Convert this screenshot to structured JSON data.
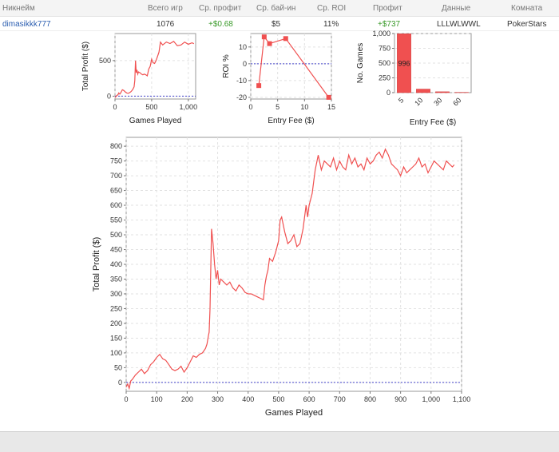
{
  "table": {
    "headers": [
      "Никнейм",
      "Всего игр",
      "Ср. профит",
      "Ср. бай-ин",
      "Ср. ROI",
      "Профит",
      "Данные",
      "Комната"
    ],
    "row": {
      "nickname": "dimasikkk777",
      "total_games": "1076",
      "avg_profit": "+$0.68",
      "avg_buyin": "$5",
      "avg_roi": "11%",
      "profit": "+$737",
      "data": "LLLWLWWL",
      "room": "PokerStars"
    }
  },
  "colors": {
    "series": "#f05050",
    "zero_line": "#4444cc",
    "positive": "#3a9a2a",
    "link": "#2a5db0"
  },
  "chart_data": [
    {
      "id": "small-profit",
      "type": "line",
      "xlabel": "Games Played",
      "ylabel": "Total Profit ($)",
      "xlim": [
        0,
        1100
      ],
      "ylim": [
        -40,
        880
      ],
      "xticks": [
        0,
        500,
        1000
      ],
      "xtick_labels": [
        "0",
        "500",
        "1,000"
      ],
      "yticks": [
        0,
        500
      ],
      "grid": true,
      "x": [
        0,
        10,
        25,
        40,
        50,
        65,
        80,
        100,
        120,
        140,
        160,
        180,
        200,
        220,
        240,
        260,
        270,
        280,
        290,
        300,
        310,
        320,
        340,
        360,
        380,
        400,
        420,
        440,
        450,
        460,
        480,
        500,
        520,
        540,
        560,
        580,
        600,
        620,
        650,
        700,
        750,
        800,
        850,
        900,
        950,
        1000,
        1050,
        1076
      ],
      "y": [
        -20,
        -10,
        10,
        20,
        45,
        30,
        50,
        90,
        80,
        60,
        45,
        40,
        50,
        65,
        90,
        130,
        220,
        500,
        330,
        370,
        310,
        340,
        330,
        310,
        300,
        310,
        300,
        285,
        330,
        380,
        420,
        520,
        470,
        460,
        500,
        560,
        620,
        760,
        720,
        760,
        740,
        770,
        710,
        720,
        760,
        730,
        750,
        737
      ]
    },
    {
      "id": "roi",
      "type": "line",
      "xlabel": "Entry Fee ($)",
      "ylabel": "ROI %",
      "xlim": [
        0,
        15
      ],
      "ylim": [
        -21,
        18
      ],
      "xticks": [
        0,
        5,
        10,
        15
      ],
      "yticks": [
        -20,
        -10,
        0,
        10
      ],
      "grid": true,
      "x": [
        1.5,
        2.5,
        3.5,
        6.5,
        14.5
      ],
      "y": [
        -13,
        16,
        12,
        15,
        -20
      ]
    },
    {
      "id": "games-count",
      "type": "bar",
      "xlabel": "Entry Fee ($)",
      "ylabel": "No. Games",
      "categories": [
        "5",
        "10",
        "30",
        "60"
      ],
      "values": [
        996,
        60,
        15,
        5
      ],
      "data_labels": [
        "996",
        "",
        "",
        ""
      ],
      "ylim": [
        0,
        1000
      ],
      "yticks": [
        0,
        250,
        500,
        750,
        1000
      ],
      "ytick_labels": [
        "0",
        "250",
        "500",
        "750",
        "1,000"
      ],
      "grid": true
    },
    {
      "id": "main-profit",
      "type": "line",
      "xlabel": "Games Played",
      "ylabel": "Total Profit ($)",
      "xlim": [
        0,
        1100
      ],
      "ylim": [
        -30,
        830
      ],
      "xticks": [
        0,
        100,
        200,
        300,
        400,
        500,
        600,
        700,
        800,
        900,
        1000,
        1100
      ],
      "xtick_labels": [
        "0",
        "100",
        "200",
        "300",
        "400",
        "500",
        "600",
        "700",
        "800",
        "900",
        "1,000",
        "1,100"
      ],
      "yticks": [
        0,
        50,
        100,
        150,
        200,
        250,
        300,
        350,
        400,
        450,
        500,
        550,
        600,
        650,
        700,
        750,
        800
      ],
      "grid": true,
      "x": [
        0,
        5,
        10,
        15,
        20,
        30,
        40,
        50,
        60,
        70,
        80,
        90,
        100,
        110,
        120,
        130,
        140,
        150,
        160,
        170,
        180,
        190,
        200,
        210,
        220,
        230,
        240,
        250,
        260,
        265,
        270,
        272,
        275,
        280,
        285,
        290,
        295,
        300,
        305,
        310,
        320,
        330,
        340,
        350,
        360,
        370,
        380,
        390,
        400,
        410,
        420,
        430,
        440,
        450,
        455,
        460,
        465,
        470,
        480,
        490,
        500,
        505,
        510,
        520,
        530,
        540,
        550,
        560,
        570,
        580,
        590,
        595,
        600,
        610,
        620,
        630,
        640,
        650,
        660,
        670,
        680,
        690,
        700,
        710,
        720,
        730,
        740,
        750,
        760,
        770,
        780,
        790,
        800,
        810,
        820,
        830,
        840,
        850,
        860,
        870,
        880,
        890,
        900,
        910,
        920,
        930,
        940,
        950,
        960,
        970,
        980,
        990,
        1000,
        1010,
        1020,
        1030,
        1040,
        1050,
        1060,
        1070,
        1076
      ],
      "y": [
        -15,
        -5,
        -20,
        5,
        10,
        25,
        35,
        45,
        30,
        40,
        60,
        70,
        85,
        95,
        80,
        75,
        60,
        45,
        40,
        45,
        55,
        35,
        50,
        70,
        90,
        85,
        95,
        100,
        115,
        130,
        160,
        170,
        250,
        520,
        470,
        400,
        350,
        380,
        330,
        350,
        340,
        330,
        340,
        320,
        310,
        330,
        320,
        305,
        300,
        300,
        295,
        290,
        285,
        280,
        330,
        360,
        380,
        420,
        410,
        440,
        480,
        550,
        560,
        510,
        470,
        480,
        500,
        460,
        470,
        520,
        600,
        560,
        600,
        640,
        720,
        770,
        720,
        750,
        740,
        730,
        760,
        720,
        750,
        730,
        720,
        770,
        740,
        760,
        730,
        740,
        720,
        760,
        740,
        750,
        770,
        780,
        760,
        790,
        770,
        740,
        730,
        720,
        700,
        730,
        710,
        720,
        730,
        740,
        760,
        730,
        740,
        710,
        730,
        750,
        740,
        730,
        720,
        750,
        740,
        730,
        737
      ]
    }
  ]
}
